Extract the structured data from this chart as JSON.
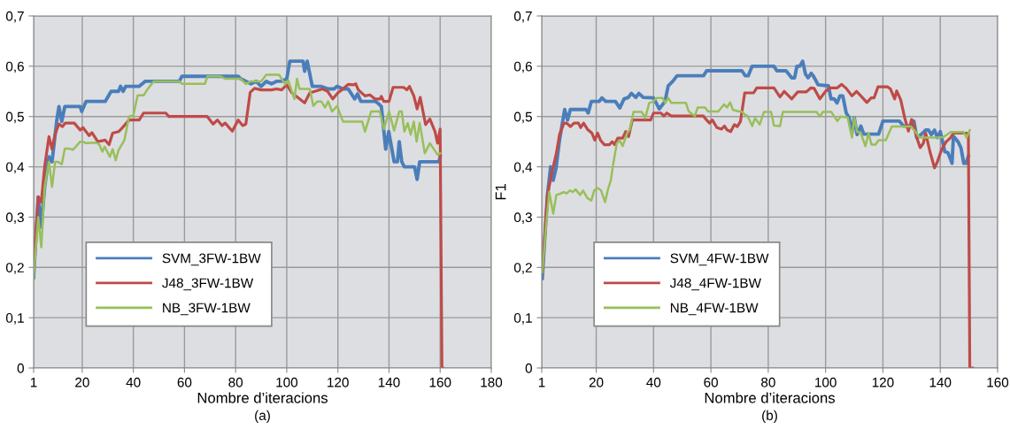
{
  "chart_data": [
    {
      "type": "line",
      "xlabel": "Nombre d’iteracions",
      "annotations": [
        "(a)"
      ],
      "xlim": [
        1,
        180
      ],
      "xticks": [
        1,
        20,
        40,
        60,
        80,
        100,
        120,
        140,
        160,
        180
      ],
      "ylim": [
        0,
        0.7
      ],
      "yticks": [
        0,
        {
          "value": 0.1,
          "label": "0,1"
        },
        {
          "value": 0.2,
          "label": "0,2"
        },
        {
          "value": 0.3,
          "label": "0,3"
        },
        {
          "value": 0.4,
          "label": "0,4"
        },
        {
          "value": 0.5,
          "label": "0,5"
        },
        {
          "value": 0.6,
          "label": "0,6"
        },
        {
          "value": 0.7,
          "label": "0,7"
        }
      ],
      "grid": true,
      "legend": "bottom left",
      "marker": "none",
      "line_style": "solid",
      "series": [
        {
          "name": "SVM_3FW-1BW",
          "color": "#4a7ebb",
          "x": [
            1,
            2.8,
            4,
            5.3,
            7,
            8.2,
            10,
            10.9,
            12,
            13.2,
            19.2,
            19.8,
            21.5,
            29,
            31.3,
            34.2,
            35,
            36,
            37,
            42.3,
            44.6,
            58,
            59,
            81,
            82,
            86,
            88,
            90,
            92,
            94,
            96,
            98,
            100,
            101.2,
            106.4,
            107,
            108,
            110,
            113.3,
            116,
            118.5,
            119.7,
            122,
            124,
            126.6,
            127.7,
            129,
            134.7,
            136,
            137,
            138.7,
            139.9,
            142,
            143.3,
            144,
            145,
            146,
            150,
            151,
            152,
            159.5,
            160
          ],
          "values": [
            0.18,
            0.34,
            0.28,
            0.36,
            0.42,
            0.41,
            0.49,
            0.52,
            0.49,
            0.52,
            0.52,
            0.51,
            0.53,
            0.53,
            0.55,
            0.55,
            0.56,
            0.55,
            0.56,
            0.56,
            0.57,
            0.57,
            0.58,
            0.58,
            0.575,
            0.565,
            0.57,
            0.56,
            0.57,
            0.565,
            0.57,
            0.57,
            0.575,
            0.61,
            0.61,
            0.59,
            0.61,
            0.56,
            0.56,
            0.555,
            0.555,
            0.56,
            0.555,
            0.555,
            0.535,
            0.545,
            0.53,
            0.53,
            0.525,
            0.52,
            0.435,
            0.47,
            0.41,
            0.41,
            0.45,
            0.41,
            0.4,
            0.4,
            0.375,
            0.41,
            0.41,
            0.42
          ]
        },
        {
          "name": "J48_3FW-1BW",
          "color": "#be4b48",
          "x": [
            1,
            2.8,
            4,
            5.3,
            7,
            8.2,
            9.4,
            10.9,
            12.3,
            13.4,
            16.9,
            19.2,
            20.3,
            22.7,
            23.8,
            26.1,
            29,
            30.5,
            31.9,
            34.2,
            35.4,
            38.3,
            42.3,
            44,
            52.7,
            53.9,
            68.9,
            71.2,
            72.9,
            74.7,
            75.9,
            78.7,
            81,
            82.8,
            84,
            85.7,
            87.4,
            90,
            92,
            94,
            96,
            98,
            100,
            102,
            107,
            109,
            111,
            114,
            116,
            118,
            120,
            122,
            124,
            126,
            127,
            128,
            130.6,
            132.5,
            134.5,
            136.5,
            137,
            138,
            140,
            141.6,
            145.7,
            147,
            148,
            149.7,
            151,
            152.2,
            154.3,
            156,
            158,
            159,
            160,
            160.7,
            161
          ],
          "values": [
            0.2,
            0.34,
            0.33,
            0.4,
            0.46,
            0.435,
            0.465,
            0.485,
            0.48,
            0.487,
            0.487,
            0.473,
            0.478,
            0.462,
            0.468,
            0.45,
            0.453,
            0.444,
            0.467,
            0.47,
            0.476,
            0.493,
            0.493,
            0.507,
            0.507,
            0.5,
            0.5,
            0.485,
            0.493,
            0.482,
            0.487,
            0.471,
            0.493,
            0.482,
            0.485,
            0.548,
            0.556,
            0.553,
            0.553,
            0.553,
            0.555,
            0.553,
            0.563,
            0.547,
            0.527,
            0.547,
            0.55,
            0.555,
            0.55,
            0.535,
            0.547,
            0.555,
            0.564,
            0.563,
            0.565,
            0.553,
            0.541,
            0.543,
            0.535,
            0.535,
            0.54,
            0.53,
            0.53,
            0.558,
            0.558,
            0.553,
            0.56,
            0.541,
            0.515,
            0.538,
            0.484,
            0.495,
            0.47,
            0.447,
            0.475,
            0,
            0
          ]
        },
        {
          "name": "NB_3FW-1BW",
          "color": "#98bf5a",
          "x": [
            1,
            2.8,
            4,
            5.3,
            7,
            8.2,
            9.4,
            10.5,
            12,
            13.2,
            15.1,
            16.3,
            17.5,
            19.2,
            20.3,
            21.5,
            25.5,
            26.7,
            27.9,
            28.8,
            30.8,
            31.9,
            33.1,
            34.2,
            36.5,
            38.3,
            40,
            41.7,
            44,
            45.8,
            48,
            58,
            59,
            68,
            69,
            74,
            76,
            82,
            84,
            86,
            88,
            90,
            92,
            97,
            99.4,
            100.6,
            103,
            104,
            105,
            109,
            110.4,
            112,
            113.5,
            115,
            116.2,
            117.7,
            119.7,
            122,
            129.5,
            130.6,
            133,
            136.4,
            138,
            140,
            142,
            144,
            145,
            146,
            147.3,
            148.5,
            149.7,
            150.8,
            152,
            154,
            156,
            159,
            160
          ],
          "values": [
            0.18,
            0.3,
            0.24,
            0.36,
            0.41,
            0.36,
            0.41,
            0.41,
            0.405,
            0.436,
            0.436,
            0.434,
            0.44,
            0.45,
            0.45,
            0.447,
            0.448,
            0.444,
            0.43,
            0.44,
            0.42,
            0.435,
            0.413,
            0.433,
            0.453,
            0.5,
            0.502,
            0.542,
            0.542,
            0.556,
            0.57,
            0.57,
            0.565,
            0.565,
            0.58,
            0.58,
            0.575,
            0.575,
            0.565,
            0.57,
            0.57,
            0.57,
            0.583,
            0.583,
            0.564,
            0.572,
            0.535,
            0.575,
            0.555,
            0.555,
            0.521,
            0.53,
            0.53,
            0.518,
            0.53,
            0.51,
            0.521,
            0.49,
            0.49,
            0.47,
            0.51,
            0.51,
            0.475,
            0.51,
            0.472,
            0.51,
            0.51,
            0.47,
            0.487,
            0.464,
            0.49,
            0.45,
            0.487,
            0.427,
            0.447,
            0.424,
            0.427
          ]
        }
      ]
    },
    {
      "type": "line",
      "xlabel": "Nombre d’iteracions",
      "ylabel": "F1",
      "annotations": [
        "(b)"
      ],
      "xlim": [
        1,
        160
      ],
      "xticks": [
        1,
        20,
        40,
        60,
        80,
        100,
        120,
        140,
        160
      ],
      "ylim": [
        0,
        0.7
      ],
      "yticks": [
        0,
        {
          "value": 0.1,
          "label": "0,1"
        },
        {
          "value": 0.2,
          "label": "0,2"
        },
        {
          "value": 0.3,
          "label": "0,3"
        },
        {
          "value": 0.4,
          "label": "0,4"
        },
        {
          "value": 0.5,
          "label": "0,5"
        },
        {
          "value": 0.6,
          "label": "0,6"
        },
        {
          "value": 0.7,
          "label": "0,7"
        }
      ],
      "grid": true,
      "legend": "bottom left",
      "marker": "none",
      "line_style": "solid",
      "series": [
        {
          "name": "SVM_4FW-1BW",
          "color": "#4a7ebb",
          "x": [
            1.2,
            3,
            4.1,
            5,
            6,
            7.2,
            9,
            10,
            11,
            16.4,
            17.2,
            18.3,
            21,
            22,
            23.3,
            26.7,
            28.2,
            29.7,
            31.2,
            32.3,
            33.8,
            34.9,
            36.4,
            40,
            42,
            44,
            45.1,
            46.7,
            48.2,
            57.4,
            58.5,
            70.8,
            72,
            73,
            74.4,
            82,
            83,
            86.2,
            88.2,
            89.2,
            90,
            91,
            92,
            93,
            93.9,
            95,
            95.8,
            97.4,
            101,
            101.9,
            103,
            104,
            105,
            106,
            107.2,
            108.2,
            109.2,
            110,
            111,
            112.3,
            113.3,
            118.5,
            120,
            125.7,
            127.2,
            129.8,
            130.8,
            131.8,
            133.3,
            134.9,
            135.9,
            136.9,
            138,
            139,
            140,
            141.6,
            142.7,
            144.1,
            144.6,
            146.2,
            147.2,
            148.2,
            149,
            149.8
          ],
          "values": [
            0.178,
            0.344,
            0.4,
            0.373,
            0.398,
            0.453,
            0.514,
            0.493,
            0.514,
            0.514,
            0.507,
            0.53,
            0.53,
            0.537,
            0.53,
            0.53,
            0.517,
            0.535,
            0.538,
            0.546,
            0.538,
            0.546,
            0.538,
            0.537,
            0.515,
            0.53,
            0.561,
            0.57,
            0.581,
            0.581,
            0.591,
            0.591,
            0.581,
            0.581,
            0.6,
            0.6,
            0.591,
            0.591,
            0.577,
            0.577,
            0.6,
            0.6,
            0.61,
            0.584,
            0.577,
            0.586,
            0.58,
            0.563,
            0.561,
            0.535,
            0.535,
            0.527,
            0.541,
            0.541,
            0.507,
            0.498,
            0.467,
            0.498,
            0.464,
            0.481,
            0.465,
            0.465,
            0.491,
            0.491,
            0.481,
            0.481,
            0.491,
            0.458,
            0.464,
            0.473,
            0.473,
            0.464,
            0.473,
            0.458,
            0.47,
            0.43,
            0.428,
            0.407,
            0.461,
            0.45,
            0.438,
            0.407,
            0.407,
            0.421
          ]
        },
        {
          "name": "J48_4FW-1BW",
          "color": "#be4b48",
          "x": [
            1.2,
            3,
            4.6,
            6.1,
            7.2,
            8.7,
            9.7,
            11,
            12.3,
            13.8,
            14.6,
            15.6,
            16.9,
            18.5,
            19.5,
            20.5,
            21.5,
            22.8,
            24.6,
            25.6,
            26.4,
            27.5,
            29.2,
            30.3,
            31.3,
            32.6,
            33.6,
            39,
            40,
            42.6,
            43.6,
            44.6,
            46.2,
            57.4,
            58.5,
            59.5,
            60.5,
            62.1,
            63.7,
            64.7,
            65.7,
            66.9,
            68.2,
            69.2,
            70.3,
            71.8,
            74.9,
            76,
            82,
            84.1,
            85.6,
            88.2,
            90.3,
            93.3,
            94.9,
            96,
            98,
            100,
            101.5,
            104.1,
            105.6,
            107.2,
            109.2,
            110.8,
            112.3,
            114.4,
            115.9,
            116.9,
            118.3,
            121.6,
            122.6,
            124.1,
            124.8,
            126.2,
            127.7,
            128.9,
            130,
            130.8,
            131.8,
            133,
            134.1,
            134.9,
            136.4,
            138,
            139,
            140.5,
            142.1,
            143.6,
            144.6,
            149.8,
            150.3,
            151.3
          ],
          "values": [
            0.19,
            0.344,
            0.39,
            0.427,
            0.464,
            0.486,
            0.487,
            0.48,
            0.487,
            0.487,
            0.478,
            0.487,
            0.475,
            0.467,
            0.453,
            0.467,
            0.453,
            0.444,
            0.444,
            0.45,
            0.444,
            0.457,
            0.457,
            0.47,
            0.46,
            0.493,
            0.493,
            0.493,
            0.507,
            0.507,
            0.501,
            0.507,
            0.501,
            0.501,
            0.493,
            0.487,
            0.493,
            0.478,
            0.475,
            0.481,
            0.473,
            0.47,
            0.484,
            0.48,
            0.49,
            0.547,
            0.547,
            0.557,
            0.557,
            0.539,
            0.55,
            0.535,
            0.549,
            0.549,
            0.557,
            0.556,
            0.535,
            0.55,
            0.557,
            0.557,
            0.564,
            0.556,
            0.541,
            0.55,
            0.541,
            0.528,
            0.537,
            0.537,
            0.559,
            0.559,
            0.555,
            0.535,
            0.551,
            0.533,
            0.495,
            0.471,
            0.494,
            0.482,
            0.458,
            0.438,
            0.447,
            0.467,
            0.43,
            0.398,
            0.41,
            0.435,
            0.45,
            0.458,
            0.467,
            0.467,
            0,
            0
          ]
        },
        {
          "name": "NB_4FW-1BW",
          "color": "#98bf5a",
          "x": [
            1.2,
            2.6,
            3.6,
            5,
            6.1,
            7.7,
            8.7,
            9.7,
            10.8,
            11.8,
            12.8,
            14.4,
            15.4,
            16.9,
            18.3,
            19.3,
            20.5,
            21.7,
            23.1,
            24.1,
            25.1,
            25.8,
            27.2,
            28.2,
            29.2,
            30.8,
            31.8,
            33,
            35.9,
            37.1,
            38.5,
            40,
            41,
            43.1,
            44.1,
            45.1,
            46.2,
            51.3,
            52.3,
            54.4,
            55.4,
            58,
            59,
            62.6,
            64.6,
            65.6,
            66.7,
            67.7,
            69.8,
            70.8,
            71.8,
            72.8,
            74.4,
            75.4,
            77,
            78.5,
            81,
            82,
            84.1,
            85.1,
            96.9,
            98,
            99,
            102,
            104.1,
            105.3,
            107.7,
            109.2,
            110,
            111,
            112.3,
            113.9,
            115,
            116,
            117.4,
            118.5,
            121,
            123.1,
            129.8,
            131.3,
            132.8,
            139,
            141.1,
            143.6,
            148.2,
            149.2,
            150.3
          ],
          "values": [
            0.19,
            0.287,
            0.35,
            0.307,
            0.344,
            0.347,
            0.35,
            0.347,
            0.353,
            0.35,
            0.355,
            0.344,
            0.353,
            0.338,
            0.333,
            0.353,
            0.358,
            0.353,
            0.33,
            0.355,
            0.373,
            0.401,
            0.447,
            0.452,
            0.441,
            0.467,
            0.475,
            0.509,
            0.509,
            0.497,
            0.527,
            0.53,
            0.537,
            0.537,
            0.527,
            0.537,
            0.527,
            0.527,
            0.51,
            0.501,
            0.518,
            0.518,
            0.51,
            0.51,
            0.524,
            0.518,
            0.528,
            0.513,
            0.51,
            0.51,
            0.504,
            0.501,
            0.481,
            0.497,
            0.484,
            0.509,
            0.509,
            0.482,
            0.481,
            0.509,
            0.509,
            0.5,
            0.509,
            0.509,
            0.491,
            0.5,
            0.498,
            0.458,
            0.498,
            0.47,
            0.467,
            0.441,
            0.467,
            0.444,
            0.444,
            0.453,
            0.453,
            0.48,
            0.48,
            0.47,
            0.458,
            0.458,
            0.459,
            0.469,
            0.469,
            0.458,
            0.473
          ]
        }
      ]
    }
  ]
}
